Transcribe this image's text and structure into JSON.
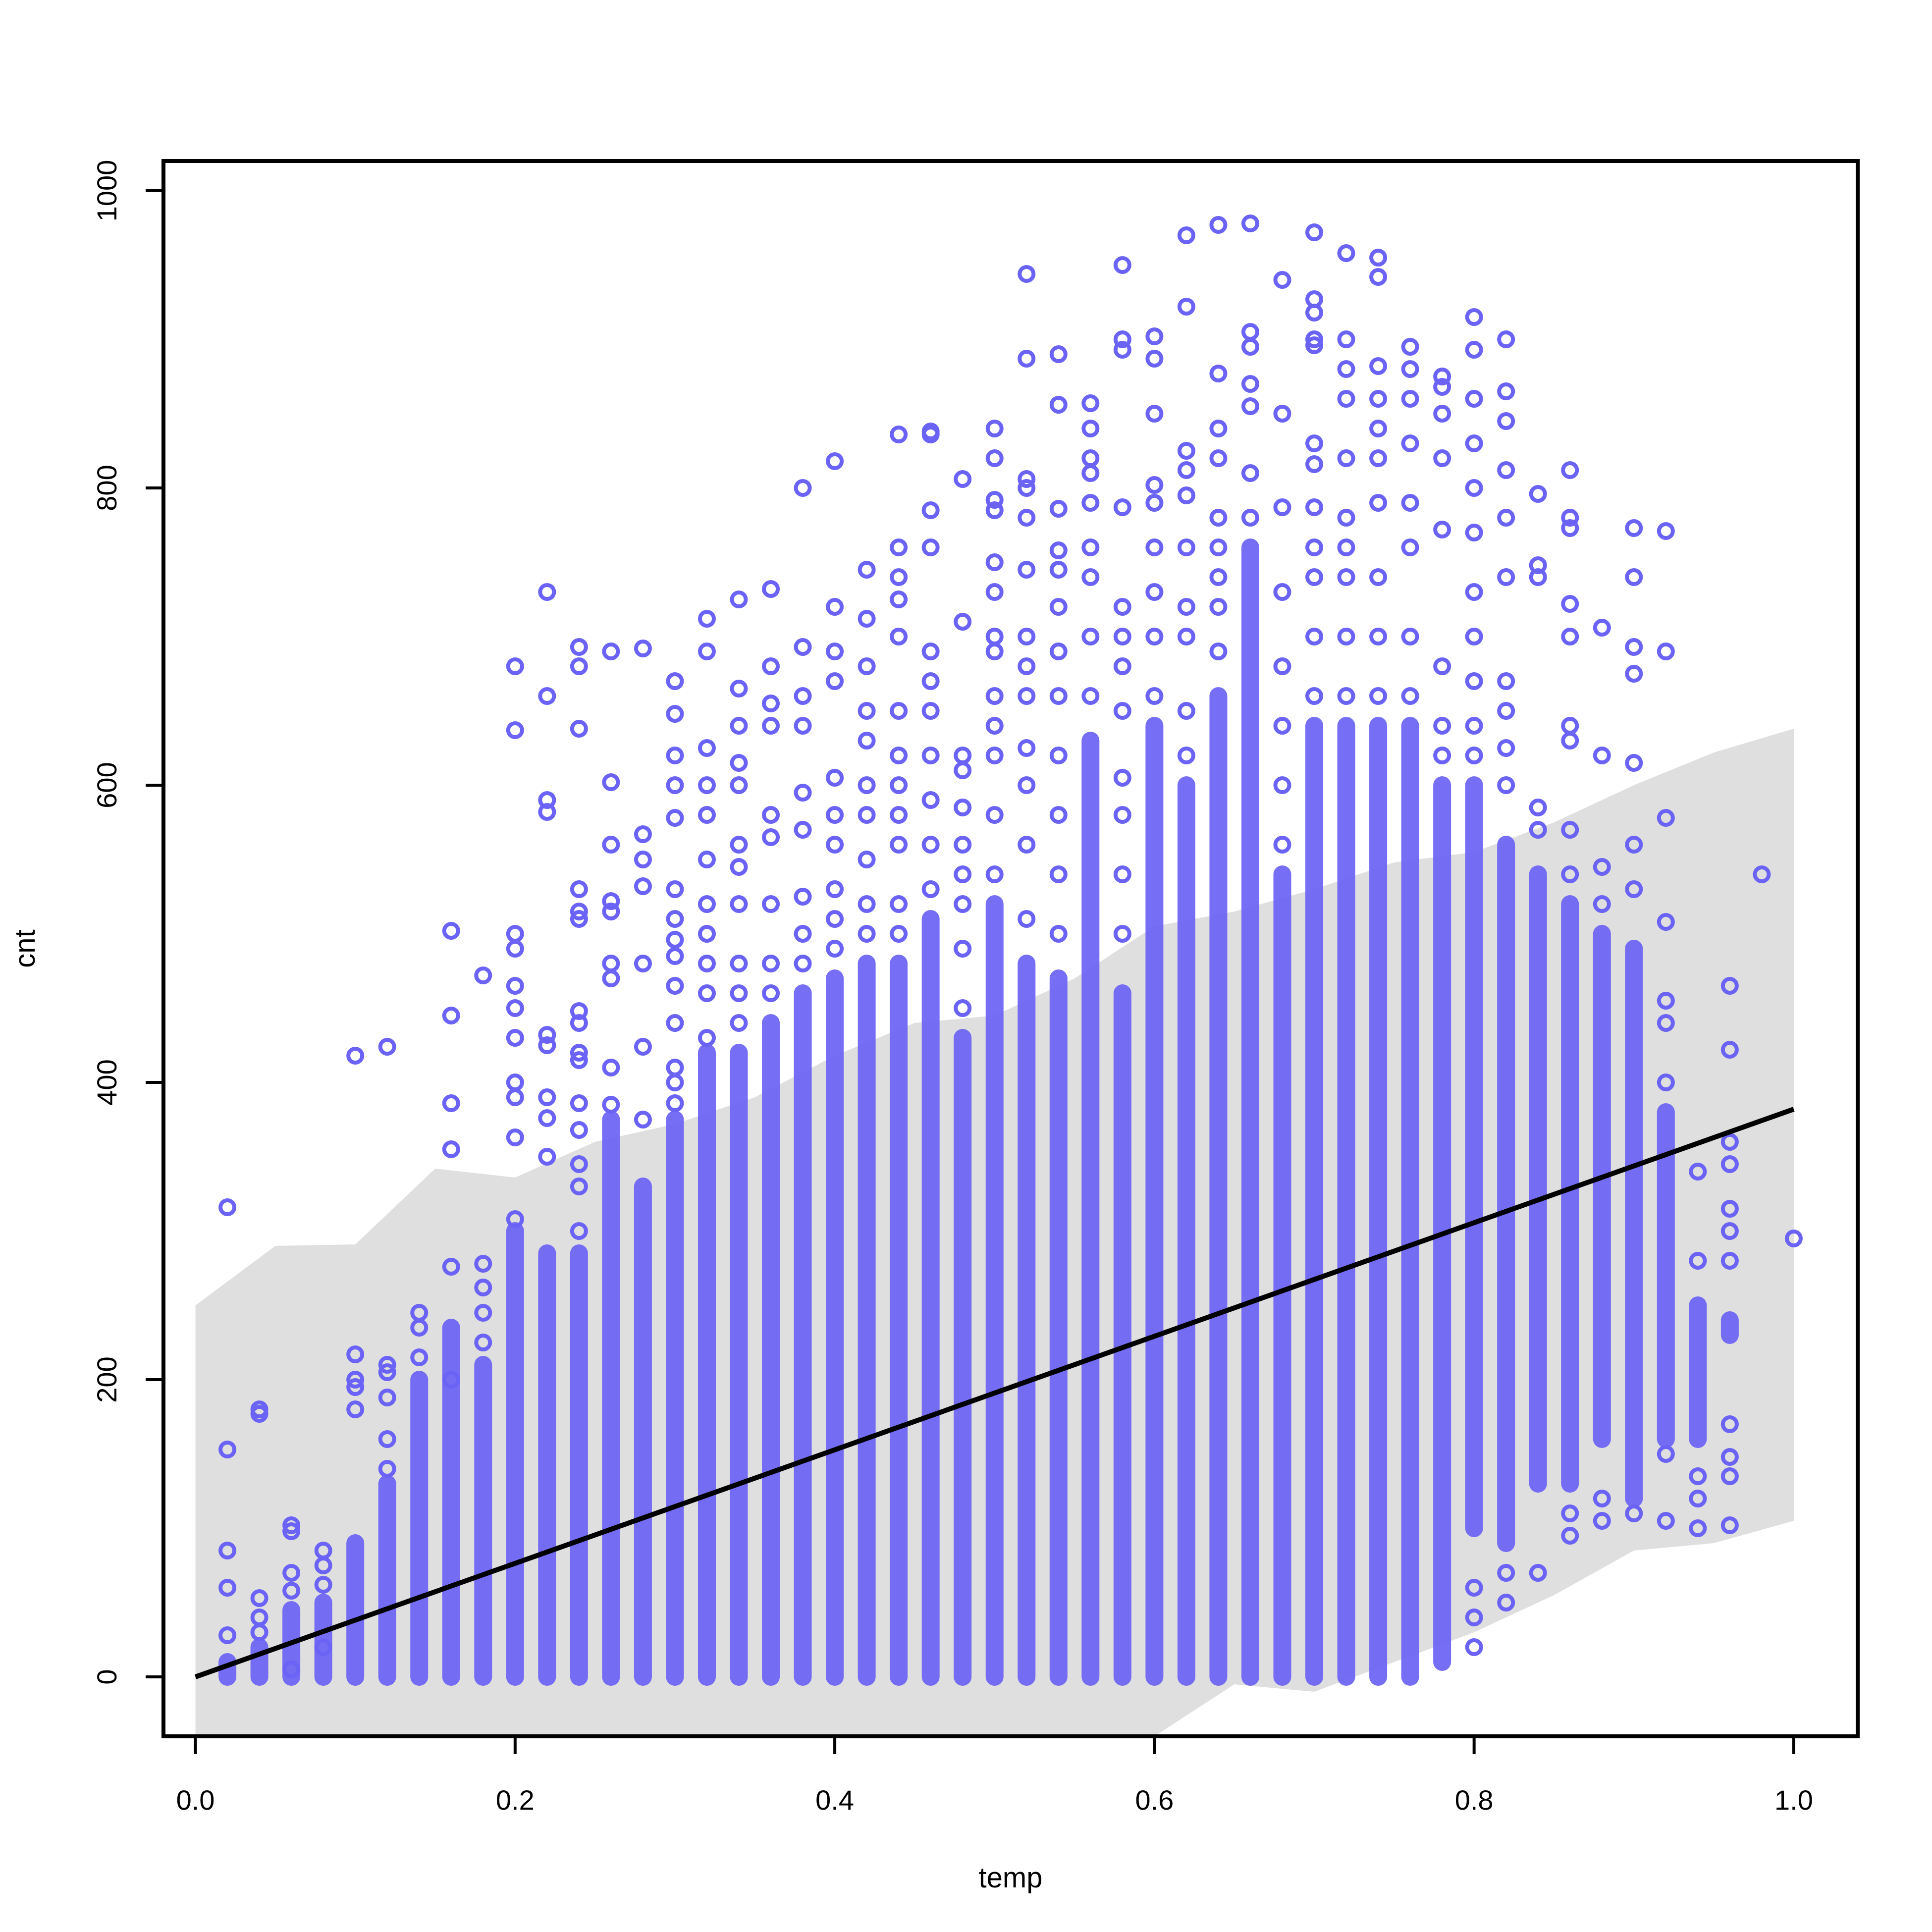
{
  "chart_data": {
    "type": "scatter",
    "title": "",
    "xlabel": "temp",
    "ylabel": "cnt",
    "xlim": [
      -0.02,
      1.04
    ],
    "ylim": [
      -40,
      1020
    ],
    "x_ticks": [
      "0.0",
      "0.2",
      "0.4",
      "0.6",
      "0.8",
      "1.0"
    ],
    "x_tick_values": [
      0,
      0.2,
      0.4,
      0.6,
      0.8,
      1.0
    ],
    "y_ticks": [
      "0",
      "200",
      "400",
      "600",
      "800",
      "1000"
    ],
    "y_tick_values": [
      0,
      200,
      400,
      600,
      800,
      1000
    ],
    "grid": false,
    "colors": {
      "points": "#6b63f5",
      "fit_line": "#000000",
      "band": "#d9d9d9"
    },
    "fit_line": {
      "x": [
        0,
        1.0
      ],
      "y": [
        0,
        382
      ]
    },
    "prediction_band": {
      "x": [
        0.0,
        0.05,
        0.1,
        0.15,
        0.2,
        0.25,
        0.3,
        0.35,
        0.4,
        0.45,
        0.5,
        0.55,
        0.6,
        0.65,
        0.7,
        0.75,
        0.8,
        0.85,
        0.9,
        0.95,
        1.0
      ],
      "upper": [
        250,
        290,
        291,
        342,
        336,
        360,
        372,
        390,
        418,
        440,
        445,
        470,
        505,
        515,
        530,
        548,
        555,
        575,
        600,
        622,
        638
      ],
      "lower": [
        -40,
        -40,
        -40,
        -40,
        -40,
        -40,
        -40,
        -40,
        -40,
        -40,
        -40,
        -40,
        -40,
        -5,
        -10,
        10,
        30,
        55,
        85,
        90,
        105
      ]
    },
    "columns": [
      {
        "x": 0.02,
        "dense": [
          0,
          10
        ],
        "points": [
          28,
          60,
          85,
          153,
          316
        ]
      },
      {
        "x": 0.04,
        "dense": [
          0,
          20
        ],
        "points": [
          30,
          40,
          53,
          177,
          180
        ]
      },
      {
        "x": 0.06,
        "dense": [
          0,
          45
        ],
        "points": [
          5,
          58,
          70,
          98,
          102
        ]
      },
      {
        "x": 0.08,
        "dense": [
          0,
          50
        ],
        "points": [
          20,
          62,
          75,
          85
        ]
      },
      {
        "x": 0.1,
        "dense": [
          0,
          90
        ],
        "points": [
          180,
          195,
          200,
          217,
          418
        ]
      },
      {
        "x": 0.12,
        "dense": [
          0,
          130
        ],
        "points": [
          140,
          160,
          188,
          205,
          210,
          424
        ]
      },
      {
        "x": 0.14,
        "dense": [
          0,
          200
        ],
        "points": [
          215,
          235,
          245
        ]
      },
      {
        "x": 0.16,
        "dense": [
          0,
          235
        ],
        "points": [
          200,
          276,
          355,
          386,
          445,
          502
        ]
      },
      {
        "x": 0.18,
        "dense": [
          0,
          210
        ],
        "points": [
          225,
          245,
          262,
          278,
          472
        ]
      },
      {
        "x": 0.2,
        "dense": [
          0,
          300
        ],
        "points": [
          308,
          363,
          390,
          400,
          430,
          450,
          465,
          490,
          500,
          637,
          680
        ]
      },
      {
        "x": 0.22,
        "dense": [
          0,
          285
        ],
        "points": [
          350,
          376,
          390,
          425,
          432,
          582,
          590,
          660,
          730
        ]
      },
      {
        "x": 0.24,
        "dense": [
          0,
          285
        ],
        "points": [
          300,
          330,
          345,
          368,
          386,
          415,
          420,
          440,
          448,
          510,
          515,
          530,
          638,
          680,
          693
        ]
      },
      {
        "x": 0.26,
        "dense": [
          0,
          375
        ],
        "points": [
          385,
          410,
          470,
          480,
          515,
          522,
          560,
          602,
          690
        ]
      },
      {
        "x": 0.28,
        "dense": [
          0,
          330
        ],
        "points": [
          375,
          424,
          480,
          532,
          550,
          567,
          692
        ]
      },
      {
        "x": 0.3,
        "dense": [
          0,
          375
        ],
        "points": [
          386,
          400,
          410,
          440,
          465,
          485,
          496,
          510,
          530,
          578,
          600,
          620,
          648,
          670
        ]
      },
      {
        "x": 0.32,
        "dense": [
          0,
          420
        ],
        "points": [
          430,
          460,
          480,
          500,
          520,
          550,
          580,
          600,
          625,
          690,
          712
        ]
      },
      {
        "x": 0.34,
        "dense": [
          0,
          420
        ],
        "points": [
          440,
          460,
          480,
          520,
          545,
          560,
          600,
          615,
          640,
          665,
          725
        ]
      },
      {
        "x": 0.36,
        "dense": [
          0,
          440
        ],
        "points": [
          460,
          480,
          520,
          565,
          580,
          640,
          655,
          680,
          732
        ]
      },
      {
        "x": 0.38,
        "dense": [
          0,
          460
        ],
        "points": [
          480,
          500,
          525,
          570,
          595,
          640,
          660,
          693,
          800
        ]
      },
      {
        "x": 0.4,
        "dense": [
          0,
          470
        ],
        "points": [
          490,
          510,
          530,
          560,
          580,
          605,
          670,
          690,
          720,
          818
        ]
      },
      {
        "x": 0.42,
        "dense": [
          0,
          480
        ],
        "points": [
          500,
          520,
          550,
          580,
          600,
          630,
          650,
          680,
          712,
          745
        ]
      },
      {
        "x": 0.44,
        "dense": [
          0,
          480
        ],
        "points": [
          500,
          520,
          560,
          580,
          600,
          620,
          650,
          700,
          725,
          740,
          760,
          836
        ]
      },
      {
        "x": 0.46,
        "dense": [
          0,
          510
        ],
        "points": [
          530,
          560,
          590,
          620,
          650,
          670,
          690,
          760,
          785,
          836,
          838
        ]
      },
      {
        "x": 0.48,
        "dense": [
          0,
          430
        ],
        "points": [
          450,
          490,
          520,
          540,
          560,
          585,
          610,
          620,
          710,
          806
        ]
      },
      {
        "x": 0.5,
        "dense": [
          0,
          520
        ],
        "points": [
          540,
          580,
          620,
          640,
          660,
          690,
          700,
          730,
          750,
          785,
          792,
          820,
          840
        ]
      },
      {
        "x": 0.52,
        "dense": [
          0,
          480
        ],
        "points": [
          510,
          560,
          600,
          625,
          660,
          680,
          700,
          745,
          780,
          800,
          806,
          887,
          944
        ]
      },
      {
        "x": 0.54,
        "dense": [
          0,
          470
        ],
        "points": [
          500,
          540,
          580,
          620,
          660,
          690,
          720,
          745,
          758,
          786,
          856,
          890
        ]
      },
      {
        "x": 0.56,
        "dense": [
          0,
          630
        ],
        "points": [
          660,
          700,
          740,
          760,
          790,
          810,
          820,
          840,
          857
        ]
      },
      {
        "x": 0.58,
        "dense": [
          0,
          460
        ],
        "points": [
          500,
          540,
          580,
          605,
          650,
          680,
          700,
          720,
          787,
          893,
          900,
          950
        ]
      },
      {
        "x": 0.6,
        "dense": [
          0,
          640
        ],
        "points": [
          660,
          700,
          730,
          760,
          790,
          802,
          850,
          887,
          902
        ]
      },
      {
        "x": 0.62,
        "dense": [
          0,
          600
        ],
        "points": [
          620,
          650,
          700,
          720,
          760,
          795,
          812,
          825,
          922,
          970
        ]
      },
      {
        "x": 0.64,
        "dense": [
          0,
          660
        ],
        "points": [
          690,
          720,
          740,
          760,
          780,
          820,
          840,
          877,
          977
        ]
      },
      {
        "x": 0.66,
        "dense": [
          0,
          760
        ],
        "points": [
          780,
          810,
          855,
          870,
          895,
          905,
          978
        ]
      },
      {
        "x": 0.68,
        "dense": [
          0,
          540
        ],
        "points": [
          560,
          600,
          640,
          680,
          730,
          787,
          850,
          940
        ]
      },
      {
        "x": 0.7,
        "dense": [
          0,
          640
        ],
        "points": [
          660,
          700,
          740,
          760,
          787,
          816,
          830,
          896,
          900,
          918,
          927,
          972
        ]
      },
      {
        "x": 0.72,
        "dense": [
          0,
          640
        ],
        "points": [
          660,
          700,
          740,
          760,
          780,
          820,
          860,
          880,
          900,
          958
        ]
      },
      {
        "x": 0.74,
        "dense": [
          0,
          640
        ],
        "points": [
          660,
          700,
          740,
          790,
          820,
          840,
          860,
          882,
          942,
          955
        ]
      },
      {
        "x": 0.76,
        "dense": [
          0,
          640
        ],
        "points": [
          660,
          700,
          760,
          790,
          830,
          860,
          880,
          895
        ]
      },
      {
        "x": 0.78,
        "dense": [
          10,
          600
        ],
        "points": [
          620,
          640,
          680,
          772,
          820,
          850,
          868,
          875
        ]
      },
      {
        "x": 0.8,
        "dense": [
          100,
          600
        ],
        "points": [
          20,
          40,
          60,
          620,
          640,
          670,
          700,
          730,
          770,
          800,
          830,
          860,
          893,
          915
        ]
      },
      {
        "x": 0.82,
        "dense": [
          90,
          560
        ],
        "points": [
          50,
          70,
          600,
          625,
          650,
          670,
          740,
          780,
          812,
          845,
          865,
          900
        ]
      },
      {
        "x": 0.84,
        "dense": [
          130,
          540
        ],
        "points": [
          70,
          570,
          585,
          740,
          748,
          796
        ]
      },
      {
        "x": 0.86,
        "dense": [
          130,
          520
        ],
        "points": [
          95,
          110,
          540,
          570,
          630,
          640,
          700,
          722,
          773,
          780,
          812
        ]
      },
      {
        "x": 0.88,
        "dense": [
          160,
          500
        ],
        "points": [
          105,
          120,
          520,
          545,
          620,
          706
        ]
      },
      {
        "x": 0.9,
        "dense": [
          120,
          490
        ],
        "points": [
          110,
          530,
          560,
          615,
          675,
          693,
          740,
          773
        ]
      },
      {
        "x": 0.92,
        "dense": [
          160,
          380
        ],
        "points": [
          105,
          150,
          400,
          440,
          455,
          508,
          578,
          690,
          771
        ]
      },
      {
        "x": 0.94,
        "dense": [
          160,
          250
        ],
        "points": [
          100,
          120,
          135,
          340,
          280
        ]
      },
      {
        "x": 0.96,
        "dense": [
          230,
          240
        ],
        "points": [
          102,
          135,
          148,
          170,
          280,
          300,
          315,
          345,
          360,
          422,
          465
        ]
      },
      {
        "x": 0.98,
        "dense": null,
        "points": [
          540
        ]
      },
      {
        "x": 1.0,
        "dense": null,
        "points": [
          295
        ]
      }
    ]
  }
}
